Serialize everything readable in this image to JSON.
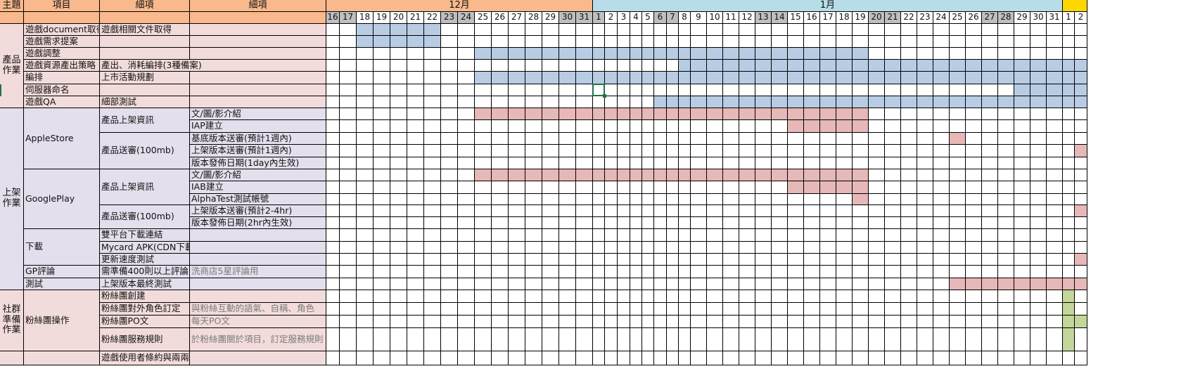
{
  "header": {
    "theme": "主題",
    "item": "項目",
    "detail1": "細項",
    "detail2": "細項"
  },
  "months": [
    {
      "label": "12月",
      "key": "dec"
    },
    {
      "label": "1月",
      "key": "jan"
    },
    {
      "label": "",
      "key": "feb"
    }
  ],
  "days": [
    {
      "d": "16",
      "m": "dec",
      "we": true
    },
    {
      "d": "17",
      "m": "dec",
      "we": true
    },
    {
      "d": "18",
      "m": "dec"
    },
    {
      "d": "19",
      "m": "dec"
    },
    {
      "d": "20",
      "m": "dec"
    },
    {
      "d": "21",
      "m": "dec"
    },
    {
      "d": "22",
      "m": "dec"
    },
    {
      "d": "23",
      "m": "dec",
      "we": true
    },
    {
      "d": "24",
      "m": "dec",
      "we": true
    },
    {
      "d": "25",
      "m": "dec"
    },
    {
      "d": "26",
      "m": "dec"
    },
    {
      "d": "27",
      "m": "dec"
    },
    {
      "d": "28",
      "m": "dec"
    },
    {
      "d": "29",
      "m": "dec"
    },
    {
      "d": "30",
      "m": "dec",
      "we": true
    },
    {
      "d": "31",
      "m": "dec",
      "we": true
    },
    {
      "d": "1",
      "m": "jan",
      "we": true
    },
    {
      "d": "2",
      "m": "jan"
    },
    {
      "d": "3",
      "m": "jan"
    },
    {
      "d": "4",
      "m": "jan"
    },
    {
      "d": "5",
      "m": "jan"
    },
    {
      "d": "6",
      "m": "jan",
      "we": true
    },
    {
      "d": "7",
      "m": "jan",
      "we": true
    },
    {
      "d": "8",
      "m": "jan"
    },
    {
      "d": "9",
      "m": "jan"
    },
    {
      "d": "10",
      "m": "jan"
    },
    {
      "d": "11",
      "m": "jan"
    },
    {
      "d": "12",
      "m": "jan"
    },
    {
      "d": "13",
      "m": "jan",
      "we": true
    },
    {
      "d": "14",
      "m": "jan",
      "we": true
    },
    {
      "d": "15",
      "m": "jan"
    },
    {
      "d": "16",
      "m": "jan"
    },
    {
      "d": "17",
      "m": "jan"
    },
    {
      "d": "18",
      "m": "jan"
    },
    {
      "d": "19",
      "m": "jan"
    },
    {
      "d": "20",
      "m": "jan",
      "we": true
    },
    {
      "d": "21",
      "m": "jan",
      "we": true
    },
    {
      "d": "22",
      "m": "jan"
    },
    {
      "d": "23",
      "m": "jan"
    },
    {
      "d": "24",
      "m": "jan"
    },
    {
      "d": "25",
      "m": "jan"
    },
    {
      "d": "26",
      "m": "jan"
    },
    {
      "d": "27",
      "m": "jan",
      "we": true
    },
    {
      "d": "28",
      "m": "jan",
      "we": true
    },
    {
      "d": "29",
      "m": "jan"
    },
    {
      "d": "30",
      "m": "jan"
    },
    {
      "d": "31",
      "m": "jan"
    },
    {
      "d": "1",
      "m": "feb"
    },
    {
      "d": "2",
      "m": "feb"
    }
  ],
  "colors": {
    "blue": "#b8cce4",
    "pink": "#e6b8b7",
    "green": "#c4d79b",
    "rowA": "#f2dcdb",
    "rowB": "#e4dfec"
  },
  "themes": [
    {
      "label": "產品作業",
      "from": 0,
      "to": 6,
      "bg": "a"
    },
    {
      "label": "上架作業",
      "from": 7,
      "to": 21,
      "bg": "b"
    },
    {
      "label": "社群準備作業",
      "from": 22,
      "to": 25,
      "bg": "a"
    }
  ],
  "items": [
    {
      "label": "遊戲document取得",
      "row": 0,
      "span": 1,
      "bg": "a"
    },
    {
      "label": "遊戲需求提案",
      "row": 1,
      "span": 1,
      "bg": "a"
    },
    {
      "label": "遊戲調整",
      "row": 2,
      "span": 1,
      "bg": "a"
    },
    {
      "label": "遊戲資源產出策略",
      "row": 3,
      "span": 1,
      "bg": "a"
    },
    {
      "label": "編排",
      "row": 4,
      "span": 1,
      "bg": "a"
    },
    {
      "label": "伺服器命名",
      "row": 5,
      "span": 1,
      "bg": "a"
    },
    {
      "label": "遊戲QA",
      "row": 6,
      "span": 1,
      "bg": "a"
    },
    {
      "label": "AppleStore",
      "row": 7,
      "span": 5,
      "bg": "b"
    },
    {
      "label": "GooglePlay",
      "row": 12,
      "span": 5,
      "bg": "b"
    },
    {
      "label": "下載",
      "row": 17,
      "span": 3,
      "bg": "b"
    },
    {
      "label": "GP評論",
      "row": 20,
      "span": 1,
      "bg": "b"
    },
    {
      "label": "測試",
      "row": 21,
      "span": 1,
      "bg": "b"
    },
    {
      "label": "粉絲團操作",
      "row": 22,
      "span": 4,
      "bg": "a"
    },
    {
      "label": "",
      "row": 26,
      "span": 1,
      "bg": "a"
    }
  ],
  "details1": [
    {
      "label": "遊戲相關文件取得",
      "row": 0,
      "span": 1,
      "bg": "a"
    },
    {
      "label": "",
      "row": 1,
      "span": 1,
      "bg": "a"
    },
    {
      "label": "",
      "row": 2,
      "span": 1,
      "bg": "a"
    },
    {
      "label": "產出、消耗編排(3種備案)",
      "row": 3,
      "span": 1,
      "bg": "a",
      "overflow": true
    },
    {
      "label": "上市活動規劃",
      "row": 4,
      "span": 1,
      "bg": "a"
    },
    {
      "label": "",
      "row": 5,
      "span": 1,
      "bg": "a"
    },
    {
      "label": "細部測試",
      "row": 6,
      "span": 1,
      "bg": "a"
    },
    {
      "label": "產品上架資訊",
      "row": 7,
      "span": 2,
      "bg": "b"
    },
    {
      "label": "產品送審(100mb)",
      "row": 9,
      "span": 3,
      "bg": "b"
    },
    {
      "label": "產品上架資訊",
      "row": 12,
      "span": 3,
      "bg": "b"
    },
    {
      "label": "產品送審(100mb)",
      "row": 15,
      "span": 2,
      "bg": "b"
    },
    {
      "label": "雙平台下載連結",
      "row": 17,
      "span": 1,
      "bg": "b"
    },
    {
      "label": "Mycard APK(CDN下載)",
      "row": 18,
      "span": 1,
      "bg": "b"
    },
    {
      "label": "更新速度測試",
      "row": 19,
      "span": 1,
      "bg": "b"
    },
    {
      "label": "需準備400則以上評論",
      "row": 20,
      "span": 1,
      "bg": "b"
    },
    {
      "label": "上架版本最終測試",
      "row": 21,
      "span": 1,
      "bg": "b"
    },
    {
      "label": "粉絲團創建",
      "row": 22,
      "span": 1,
      "bg": "a"
    },
    {
      "label": "粉絲團對外角色訂定",
      "row": 23,
      "span": 1,
      "bg": "a"
    },
    {
      "label": "粉絲團PO文",
      "row": 24,
      "span": 1,
      "bg": "a"
    },
    {
      "label": "粉絲團服務規則",
      "row": 25,
      "span": 1,
      "bg": "a"
    },
    {
      "label": "遊戲使用者條約與兩兩網址",
      "row": 26,
      "span": 1,
      "bg": "a"
    }
  ],
  "details2": [
    {
      "label": "",
      "row": 0,
      "span": 1,
      "bg": "a"
    },
    {
      "label": "",
      "row": 1,
      "span": 1,
      "bg": "a"
    },
    {
      "label": "",
      "row": 2,
      "span": 1,
      "bg": "a"
    },
    {
      "label": "",
      "row": 3,
      "span": 1,
      "bg": "a"
    },
    {
      "label": "",
      "row": 4,
      "span": 1,
      "bg": "a"
    },
    {
      "label": "",
      "row": 5,
      "span": 1,
      "bg": "a"
    },
    {
      "label": "",
      "row": 6,
      "span": 1,
      "bg": "a"
    },
    {
      "label": "文/圖/影介紹",
      "row": 7,
      "span": 1,
      "bg": "b"
    },
    {
      "label": "IAP建立",
      "row": 8,
      "span": 1,
      "bg": "b"
    },
    {
      "label": "基底版本送審(預計1週內)",
      "row": 9,
      "span": 1,
      "bg": "b"
    },
    {
      "label": "上架版本送審(預計1週內)",
      "row": 10,
      "span": 1,
      "bg": "b"
    },
    {
      "label": "版本發佈日期(1day內生效)",
      "row": 11,
      "span": 1,
      "bg": "b"
    },
    {
      "label": "文/圖/影介紹",
      "row": 12,
      "span": 1,
      "bg": "b"
    },
    {
      "label": "IAB建立",
      "row": 13,
      "span": 1,
      "bg": "b"
    },
    {
      "label": "AlphaTest測試帳號",
      "row": 14,
      "span": 1,
      "bg": "b"
    },
    {
      "label": "上架版本送審(預計2-4hr)",
      "row": 15,
      "span": 1,
      "bg": "b"
    },
    {
      "label": "版本發佈日期(2hr內生效)",
      "row": 16,
      "span": 1,
      "bg": "b"
    },
    {
      "label": "",
      "row": 17,
      "span": 1,
      "bg": "b"
    },
    {
      "label": "",
      "row": 18,
      "span": 1,
      "bg": "b"
    },
    {
      "label": "",
      "row": 19,
      "span": 1,
      "bg": "b"
    },
    {
      "label": "洗商店5星評論用",
      "row": 20,
      "span": 1,
      "bg": "b",
      "muted": true
    },
    {
      "label": "",
      "row": 21,
      "span": 1,
      "bg": "b"
    },
    {
      "label": "",
      "row": 22,
      "span": 1,
      "bg": "a"
    },
    {
      "label": "與粉絲互動的語氣、自稱、角色",
      "row": 23,
      "span": 1,
      "bg": "a",
      "muted": true
    },
    {
      "label": "每天PO文",
      "row": 24,
      "span": 1,
      "bg": "a",
      "muted": true
    },
    {
      "label": "於粉絲團關於項目，訂定服務規則",
      "row": 25,
      "span": 1,
      "bg": "a",
      "muted": true,
      "wrap": true
    },
    {
      "label": "",
      "row": 26,
      "span": 1,
      "bg": "a"
    }
  ],
  "bars": [
    {
      "row": 0,
      "from": 2,
      "to": 6,
      "color": "blue"
    },
    {
      "row": 1,
      "from": 2,
      "to": 6,
      "color": "blue"
    },
    {
      "row": 2,
      "from": 9,
      "to": 34,
      "color": "blue"
    },
    {
      "row": 3,
      "from": 23,
      "to": 48,
      "color": "blue"
    },
    {
      "row": 4,
      "from": 9,
      "to": 48,
      "color": "blue"
    },
    {
      "row": 5,
      "from": 44,
      "to": 48,
      "color": "blue"
    },
    {
      "row": 6,
      "from": 21,
      "to": 48,
      "color": "blue"
    },
    {
      "row": 7,
      "from": 9,
      "to": 34,
      "color": "pink"
    },
    {
      "row": 8,
      "from": 30,
      "to": 34,
      "color": "pink"
    },
    {
      "row": 9,
      "from": 40,
      "to": 40,
      "color": "pink"
    },
    {
      "row": 10,
      "from": 48,
      "to": 48,
      "color": "pink"
    },
    {
      "row": 12,
      "from": 9,
      "to": 34,
      "color": "pink"
    },
    {
      "row": 13,
      "from": 30,
      "to": 34,
      "color": "pink"
    },
    {
      "row": 14,
      "from": 34,
      "to": 34,
      "color": "pink"
    },
    {
      "row": 15,
      "from": 48,
      "to": 48,
      "color": "pink"
    },
    {
      "row": 19,
      "from": 48,
      "to": 48,
      "color": "pink"
    },
    {
      "row": 21,
      "from": 40,
      "to": 48,
      "color": "pink"
    },
    {
      "row": 22,
      "from": 47,
      "to": 47,
      "color": "green"
    },
    {
      "row": 23,
      "from": 47,
      "to": 47,
      "color": "green"
    },
    {
      "row": 24,
      "from": 47,
      "to": 48,
      "color": "green"
    },
    {
      "row": 25,
      "from": 47,
      "to": 47,
      "color": "green"
    }
  ],
  "selection": {
    "row": 5,
    "col": 16
  }
}
